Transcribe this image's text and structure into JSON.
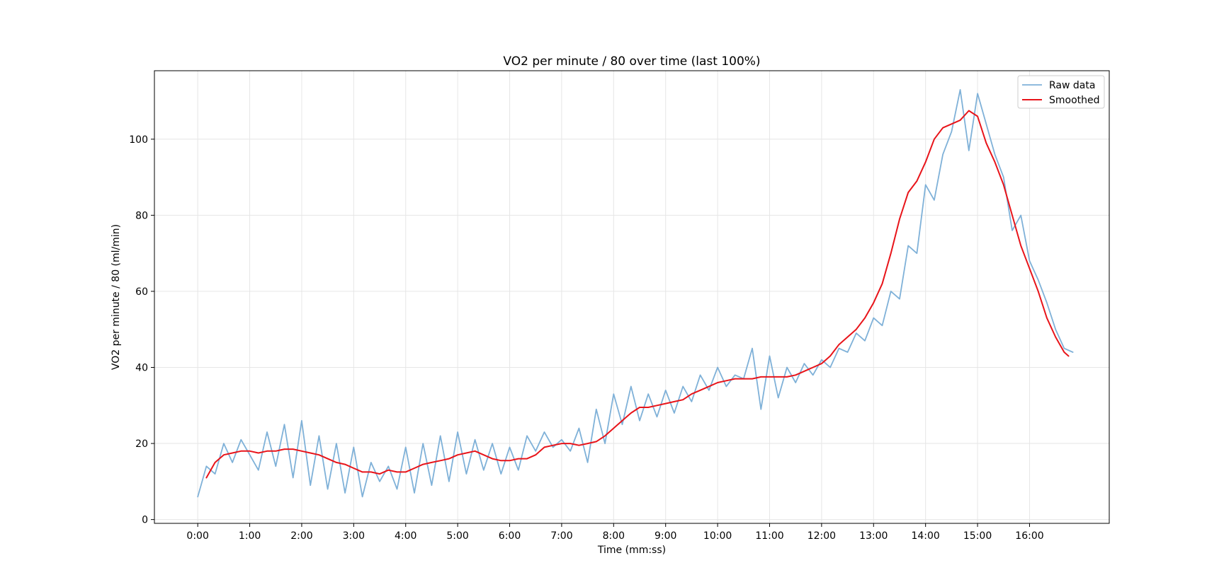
{
  "chart_data": {
    "type": "line",
    "title": "VO2 per minute / 80 over time (last 100%)",
    "xlabel": "Time (mm:ss)",
    "ylabel": "VO2 per minute / 80 (ml/min)",
    "x_unit": "mm:ss",
    "xlim": [
      "-0:50",
      "17:32"
    ],
    "ylim": [
      -1,
      118
    ],
    "x_ticks": [
      "0:00",
      "1:00",
      "2:00",
      "3:00",
      "4:00",
      "5:00",
      "6:00",
      "7:00",
      "8:00",
      "9:00",
      "10:00",
      "11:00",
      "12:00",
      "13:00",
      "14:00",
      "15:00",
      "16:00"
    ],
    "y_ticks": [
      0,
      20,
      40,
      60,
      80,
      100
    ],
    "grid": true,
    "legend_position": "top-right",
    "colors": {
      "raw": "#7fb1d8",
      "smoothed": "#e8141a"
    },
    "series": [
      {
        "name": "Raw data",
        "x": [
          "0:00",
          "0:10",
          "0:20",
          "0:30",
          "0:40",
          "0:50",
          "1:00",
          "1:10",
          "1:20",
          "1:30",
          "1:40",
          "1:50",
          "2:00",
          "2:10",
          "2:20",
          "2:30",
          "2:40",
          "2:50",
          "3:00",
          "3:10",
          "3:20",
          "3:30",
          "3:40",
          "3:50",
          "4:00",
          "4:10",
          "4:20",
          "4:30",
          "4:40",
          "4:50",
          "5:00",
          "5:10",
          "5:20",
          "5:30",
          "5:40",
          "5:50",
          "6:00",
          "6:10",
          "6:20",
          "6:30",
          "6:40",
          "6:50",
          "7:00",
          "7:10",
          "7:20",
          "7:30",
          "7:40",
          "7:50",
          "8:00",
          "8:10",
          "8:20",
          "8:30",
          "8:40",
          "8:50",
          "9:00",
          "9:10",
          "9:20",
          "9:30",
          "9:40",
          "9:50",
          "10:00",
          "10:10",
          "10:20",
          "10:30",
          "10:40",
          "10:50",
          "11:00",
          "11:10",
          "11:20",
          "11:30",
          "11:40",
          "11:50",
          "12:00",
          "12:10",
          "12:20",
          "12:30",
          "12:40",
          "12:50",
          "13:00",
          "13:10",
          "13:20",
          "13:30",
          "13:40",
          "13:50",
          "14:00",
          "14:10",
          "14:20",
          "14:30",
          "14:40",
          "14:50",
          "15:00",
          "15:10",
          "15:20",
          "15:30",
          "15:40",
          "15:50",
          "16:00",
          "16:10",
          "16:20",
          "16:30",
          "16:40",
          "16:50"
        ],
        "values": [
          6,
          14,
          12,
          20,
          15,
          21,
          17,
          13,
          23,
          14,
          25,
          11,
          26,
          9,
          22,
          8,
          20,
          7,
          19,
          6,
          15,
          10,
          14,
          8,
          19,
          7,
          20,
          9,
          22,
          10,
          23,
          12,
          21,
          13,
          20,
          12,
          19,
          13,
          22,
          18,
          23,
          19,
          21,
          18,
          24,
          15,
          29,
          20,
          33,
          25,
          35,
          26,
          33,
          27,
          34,
          28,
          35,
          31,
          38,
          34,
          40,
          35,
          38,
          37,
          45,
          29,
          43,
          32,
          40,
          36,
          41,
          38,
          42,
          40,
          45,
          44,
          49,
          47,
          53,
          51,
          60,
          58,
          72,
          70,
          88,
          84,
          96,
          102,
          113,
          97,
          112,
          104,
          96,
          90,
          76,
          80,
          68,
          63,
          57,
          50,
          45,
          44
        ]
      },
      {
        "name": "Smoothed",
        "x": [
          "0:10",
          "0:20",
          "0:30",
          "0:40",
          "0:50",
          "1:00",
          "1:10",
          "1:20",
          "1:30",
          "1:40",
          "1:50",
          "2:00",
          "2:10",
          "2:20",
          "2:30",
          "2:40",
          "2:50",
          "3:00",
          "3:10",
          "3:20",
          "3:30",
          "3:40",
          "3:50",
          "4:00",
          "4:10",
          "4:20",
          "4:30",
          "4:40",
          "4:50",
          "5:00",
          "5:10",
          "5:20",
          "5:30",
          "5:40",
          "5:50",
          "6:00",
          "6:10",
          "6:20",
          "6:30",
          "6:40",
          "6:50",
          "7:00",
          "7:10",
          "7:20",
          "7:30",
          "7:40",
          "7:50",
          "8:00",
          "8:10",
          "8:20",
          "8:30",
          "8:40",
          "8:50",
          "9:00",
          "9:10",
          "9:20",
          "9:30",
          "9:40",
          "9:50",
          "10:00",
          "10:10",
          "10:20",
          "10:30",
          "10:40",
          "10:50",
          "11:00",
          "11:10",
          "11:20",
          "11:30",
          "11:40",
          "11:50",
          "12:00",
          "12:10",
          "12:20",
          "12:30",
          "12:40",
          "12:50",
          "13:00",
          "13:10",
          "13:20",
          "13:30",
          "13:40",
          "13:50",
          "14:00",
          "14:10",
          "14:20",
          "14:30",
          "14:40",
          "14:50",
          "15:00",
          "15:10",
          "15:20",
          "15:30",
          "15:40",
          "15:50",
          "16:00",
          "16:10",
          "16:20",
          "16:30",
          "16:40",
          "16:45"
        ],
        "values": [
          11,
          15,
          17,
          17.5,
          18,
          18,
          17.5,
          18,
          18,
          18.5,
          18.5,
          18,
          17.5,
          17,
          16,
          15,
          14.5,
          13.5,
          12.5,
          12.5,
          12,
          13,
          12.5,
          12.5,
          13.5,
          14.5,
          15,
          15.5,
          16,
          17,
          17.5,
          18,
          17,
          16,
          15.5,
          15.5,
          16,
          16,
          17,
          19,
          19.5,
          20,
          20,
          19.5,
          20,
          20.5,
          22,
          24,
          26,
          28,
          29.5,
          29.5,
          30,
          30.5,
          31,
          31.5,
          33,
          34,
          35,
          36,
          36.5,
          37,
          37,
          37,
          37.5,
          37.5,
          37.5,
          37.5,
          38,
          39,
          40,
          41,
          43,
          46,
          48,
          50,
          53,
          57,
          62,
          70,
          79,
          86,
          89,
          94,
          100,
          103,
          104,
          105,
          107.5,
          106,
          99,
          94,
          88,
          80,
          72,
          66,
          60,
          53,
          48,
          44,
          43
        ]
      }
    ]
  }
}
